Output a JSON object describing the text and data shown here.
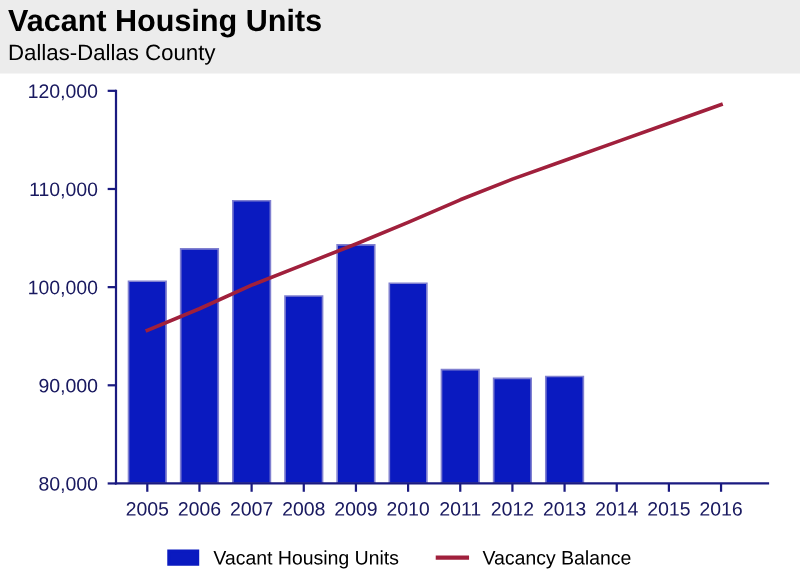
{
  "chart_data": {
    "type": "bar",
    "title": "Vacant Housing Units",
    "subtitle": "Dallas-Dallas County",
    "categories": [
      "2005",
      "2006",
      "2007",
      "2008",
      "2009",
      "2010",
      "2011",
      "2012",
      "2013",
      "2014",
      "2015",
      "2016"
    ],
    "series": [
      {
        "name": "Vacant Housing Units",
        "color": "#0a1ac0",
        "values": [
          100600,
          103900,
          108800,
          99100,
          104300,
          100400,
          91600,
          90700,
          90900,
          null,
          null,
          null
        ]
      },
      {
        "name": "Vacancy Balance",
        "type": "line",
        "color": "#a0203c",
        "values": [
          95600,
          97800,
          100200,
          102300,
          104400,
          106600,
          108900,
          111000,
          112900,
          114800,
          116700,
          118600
        ]
      }
    ],
    "ylim": [
      80000,
      120000
    ],
    "yticks": [
      {
        "value": 80000,
        "label": "80,000"
      },
      {
        "value": 90000,
        "label": "90,000"
      },
      {
        "value": 100000,
        "label": "100,000"
      },
      {
        "value": 110000,
        "label": "110,000"
      },
      {
        "value": 120000,
        "label": "120,000"
      }
    ],
    "grid": false,
    "legend": "bottom",
    "marker": "none",
    "line_style": "solid"
  }
}
